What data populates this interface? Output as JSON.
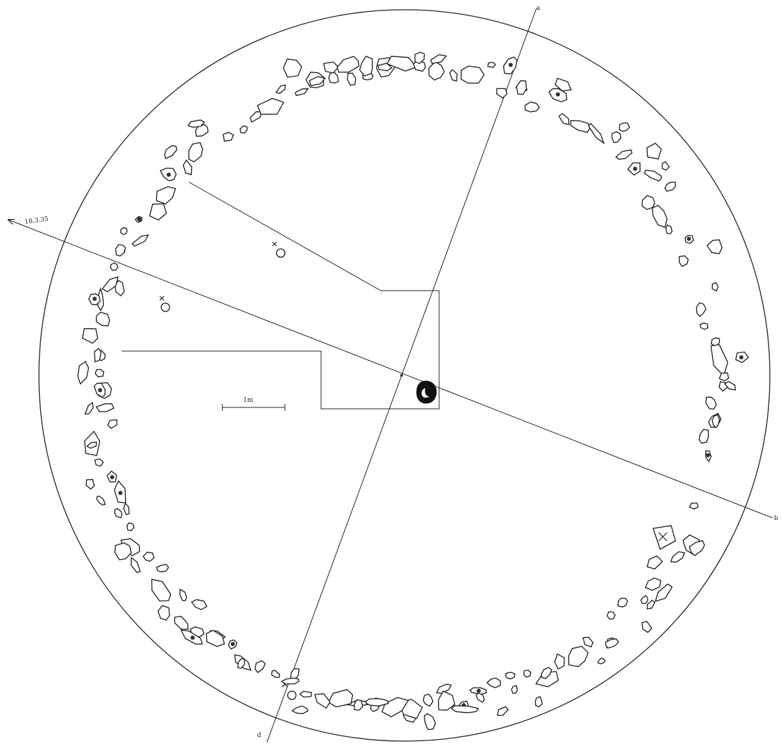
{
  "plan": {
    "annotation_arrow": "18.3.35",
    "scale_bar_label": "1m",
    "axis_labels": {
      "north": "a",
      "south": "d",
      "east": "b"
    }
  },
  "colors": {
    "ink": "#1a1a1a",
    "paper": "#ffffff"
  },
  "icons": {
    "arrow": "arrow-icon",
    "find_marker": "cross-circle-icon",
    "central_pit": "moon-stone-icon"
  }
}
